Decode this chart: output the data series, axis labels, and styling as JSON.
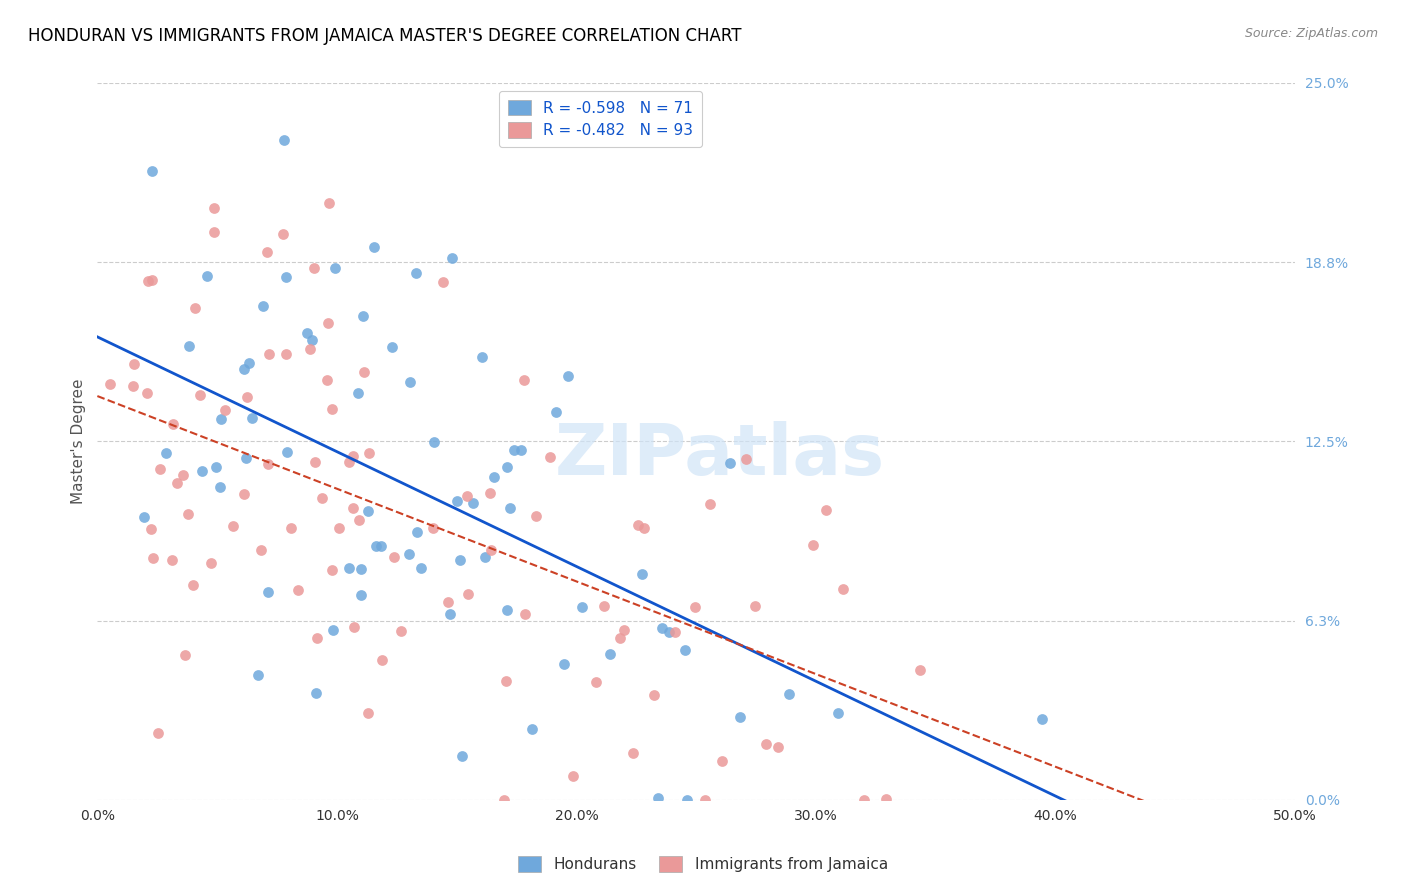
{
  "title": "HONDURAN VS IMMIGRANTS FROM JAMAICA MASTER'S DEGREE CORRELATION CHART",
  "source": "Source: ZipAtlas.com",
  "xlabel": "",
  "ylabel": "Master's Degree",
  "xlim": [
    0.0,
    0.5
  ],
  "ylim": [
    0.0,
    0.25
  ],
  "xticks": [
    0.0,
    0.1,
    0.2,
    0.3,
    0.4,
    0.5
  ],
  "xticklabels": [
    "0.0%",
    "10.0%",
    "20.0%",
    "30.0%",
    "40.0%",
    "50.0%"
  ],
  "yticks_right": [
    0.0,
    0.0625,
    0.125,
    0.1875,
    0.25
  ],
  "ytick_right_labels": [
    "0.0%",
    "6.3%",
    "12.5%",
    "18.8%",
    "25.0%"
  ],
  "R_blue": -0.598,
  "N_blue": 71,
  "R_pink": -0.482,
  "N_pink": 93,
  "blue_color": "#6fa8dc",
  "pink_color": "#ea9999",
  "blue_line_color": "#1155cc",
  "pink_line_color": "#cc4125",
  "label_blue": "Hondurans",
  "label_pink": "Immigrants from Jamaica",
  "watermark": "ZIPatlas",
  "background_color": "#ffffff",
  "grid_color": "#cccccc",
  "title_color": "#000000",
  "axis_label_color": "#6fa8dc",
  "right_tick_color": "#6fa8dc",
  "bottom_tick_color": "#000000",
  "seed_blue": 42,
  "seed_pink": 123
}
